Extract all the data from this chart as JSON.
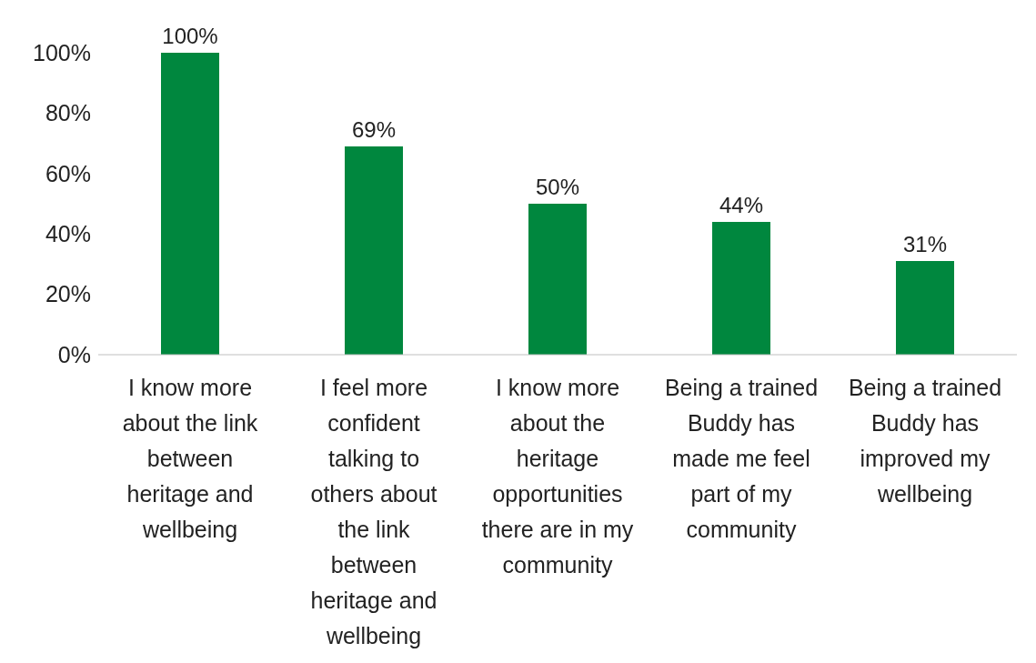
{
  "chart_data": {
    "type": "bar",
    "categories": [
      "I know more about the link between heritage and wellbeing",
      "I feel more confident talking to others about the link between heritage and wellbeing",
      "I know more about the heritage opportunities there are in my community",
      "Being a trained Buddy has made me feel part of my community",
      "Being a trained Buddy has improved my wellbeing"
    ],
    "values": [
      100,
      69,
      50,
      44,
      31
    ],
    "value_labels": [
      "100%",
      "69%",
      "50%",
      "44%",
      "31%"
    ],
    "color": "#00873e",
    "ylim": [
      0,
      100
    ],
    "yticks": [
      {
        "value": 0,
        "label": "0%"
      },
      {
        "value": 20,
        "label": "20%"
      },
      {
        "value": 40,
        "label": "40%"
      },
      {
        "value": 60,
        "label": "60%"
      },
      {
        "value": 80,
        "label": "80%"
      },
      {
        "value": 100,
        "label": "100%"
      }
    ],
    "grid": false
  }
}
